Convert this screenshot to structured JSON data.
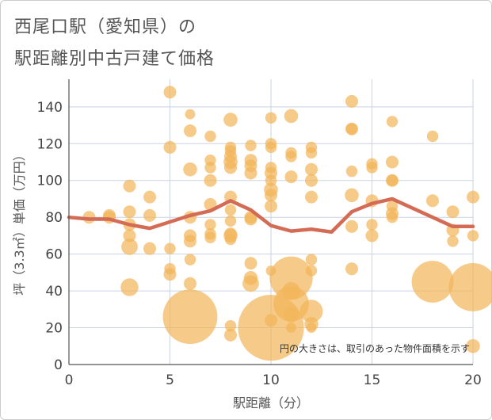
{
  "header": {
    "title_line1": "西尾口駅（愛知県）の",
    "title_line2": "駅距離別中古戸建て価格"
  },
  "chart_data": {
    "type": "scatter",
    "title": "西尾口駅（愛知県）の 駅距離別中古戸建て価格",
    "xlabel": "駅距離（分）",
    "ylabel": "坪（3.3㎡）単価（万円）",
    "xlim": [
      0,
      20
    ],
    "ylim": [
      0,
      155
    ],
    "xticks": [
      0,
      5,
      10,
      15,
      20
    ],
    "yticks": [
      0,
      20,
      40,
      60,
      80,
      100,
      120,
      140
    ],
    "grid": true,
    "note": "円の大きさは、取引のあった物件面積を示す",
    "colors": {
      "bubble": "#f2b55a",
      "line": "#d36b55",
      "grid": "#c9d3e3"
    },
    "bubbles": [
      {
        "x": 1,
        "y": 80,
        "s": 1
      },
      {
        "x": 2,
        "y": 80,
        "s": 1
      },
      {
        "x": 2,
        "y": 81,
        "s": 1
      },
      {
        "x": 3,
        "y": 97,
        "s": 1
      },
      {
        "x": 3,
        "y": 83,
        "s": 1
      },
      {
        "x": 3,
        "y": 76,
        "s": 1
      },
      {
        "x": 3,
        "y": 70,
        "s": 1
      },
      {
        "x": 3,
        "y": 64,
        "s": 1.3
      },
      {
        "x": 3,
        "y": 42,
        "s": 1.4
      },
      {
        "x": 4,
        "y": 91,
        "s": 1
      },
      {
        "x": 4,
        "y": 81,
        "s": 1
      },
      {
        "x": 4,
        "y": 63,
        "s": 1
      },
      {
        "x": 5,
        "y": 148,
        "s": 1
      },
      {
        "x": 5,
        "y": 118,
        "s": 1
      },
      {
        "x": 5,
        "y": 63,
        "s": 0.9
      },
      {
        "x": 5,
        "y": 52,
        "s": 0.9
      },
      {
        "x": 5,
        "y": 49,
        "s": 1
      },
      {
        "x": 6,
        "y": 136,
        "s": 0.8
      },
      {
        "x": 6,
        "y": 127,
        "s": 1
      },
      {
        "x": 6,
        "y": 106,
        "s": 1.1
      },
      {
        "x": 6,
        "y": 80,
        "s": 1
      },
      {
        "x": 6,
        "y": 70,
        "s": 1
      },
      {
        "x": 6,
        "y": 67,
        "s": 1
      },
      {
        "x": 6,
        "y": 57,
        "s": 0.9
      },
      {
        "x": 6,
        "y": 44,
        "s": 1
      },
      {
        "x": 6,
        "y": 26,
        "s": 4.3
      },
      {
        "x": 7,
        "y": 124,
        "s": 0.9
      },
      {
        "x": 7,
        "y": 111,
        "s": 0.9
      },
      {
        "x": 7,
        "y": 107,
        "s": 0.9
      },
      {
        "x": 7,
        "y": 100,
        "s": 1
      },
      {
        "x": 7,
        "y": 87,
        "s": 1
      },
      {
        "x": 7,
        "y": 76,
        "s": 0.9
      },
      {
        "x": 7,
        "y": 71,
        "s": 0.9
      },
      {
        "x": 7,
        "y": 69,
        "s": 0.9
      },
      {
        "x": 8,
        "y": 133,
        "s": 1.1
      },
      {
        "x": 8,
        "y": 118,
        "s": 0.9
      },
      {
        "x": 8,
        "y": 116,
        "s": 0.9
      },
      {
        "x": 8,
        "y": 113,
        "s": 1
      },
      {
        "x": 8,
        "y": 110,
        "s": 1.1
      },
      {
        "x": 8,
        "y": 107,
        "s": 1
      },
      {
        "x": 8,
        "y": 91,
        "s": 1
      },
      {
        "x": 8,
        "y": 84,
        "s": 0.9
      },
      {
        "x": 8,
        "y": 78,
        "s": 0.9
      },
      {
        "x": 8,
        "y": 71,
        "s": 1
      },
      {
        "x": 8,
        "y": 70,
        "s": 1.1
      },
      {
        "x": 8,
        "y": 68,
        "s": 0.9
      },
      {
        "x": 8,
        "y": 21,
        "s": 0.9
      },
      {
        "x": 8,
        "y": 16,
        "s": 1
      },
      {
        "x": 9,
        "y": 119,
        "s": 0.9
      },
      {
        "x": 9,
        "y": 111,
        "s": 1
      },
      {
        "x": 9,
        "y": 108,
        "s": 1
      },
      {
        "x": 9,
        "y": 104,
        "s": 1
      },
      {
        "x": 9,
        "y": 80,
        "s": 1
      },
      {
        "x": 9,
        "y": 79,
        "s": 1
      },
      {
        "x": 9,
        "y": 55,
        "s": 1
      },
      {
        "x": 9,
        "y": 47,
        "s": 1.1
      },
      {
        "x": 9,
        "y": 44,
        "s": 1.3
      },
      {
        "x": 10,
        "y": 134,
        "s": 0.9
      },
      {
        "x": 10,
        "y": 120,
        "s": 0.9
      },
      {
        "x": 10,
        "y": 118,
        "s": 0.9
      },
      {
        "x": 10,
        "y": 107,
        "s": 0.9
      },
      {
        "x": 10,
        "y": 104,
        "s": 1
      },
      {
        "x": 10,
        "y": 100,
        "s": 0.9
      },
      {
        "x": 10,
        "y": 95,
        "s": 1.1
      },
      {
        "x": 10,
        "y": 92,
        "s": 1
      },
      {
        "x": 10,
        "y": 86,
        "s": 1
      },
      {
        "x": 10,
        "y": 51,
        "s": 0.8
      },
      {
        "x": 10,
        "y": 24,
        "s": 1
      },
      {
        "x": 10,
        "y": 20,
        "s": 5.2
      },
      {
        "x": 11,
        "y": 135,
        "s": 1.1
      },
      {
        "x": 11,
        "y": 115,
        "s": 0.9
      },
      {
        "x": 11,
        "y": 113,
        "s": 0.9
      },
      {
        "x": 11,
        "y": 102,
        "s": 1
      },
      {
        "x": 11,
        "y": 47,
        "s": 3.4
      },
      {
        "x": 11,
        "y": 40,
        "s": 1.4
      },
      {
        "x": 11,
        "y": 33,
        "s": 2.8
      },
      {
        "x": 11,
        "y": 27,
        "s": 1.2
      },
      {
        "x": 11,
        "y": 20,
        "s": 0.8
      },
      {
        "x": 12,
        "y": 118,
        "s": 0.9
      },
      {
        "x": 12,
        "y": 115,
        "s": 0.9
      },
      {
        "x": 12,
        "y": 106,
        "s": 1
      },
      {
        "x": 12,
        "y": 100,
        "s": 1
      },
      {
        "x": 12,
        "y": 91,
        "s": 1
      },
      {
        "x": 12,
        "y": 57,
        "s": 0.9
      },
      {
        "x": 12,
        "y": 51,
        "s": 0.9
      },
      {
        "x": 12,
        "y": 29,
        "s": 1.8
      },
      {
        "x": 12,
        "y": 22,
        "s": 1.1
      },
      {
        "x": 12,
        "y": 20,
        "s": 0.8
      },
      {
        "x": 14,
        "y": 143,
        "s": 1
      },
      {
        "x": 14,
        "y": 128,
        "s": 1
      },
      {
        "x": 14,
        "y": 128,
        "s": 0.9
      },
      {
        "x": 14,
        "y": 105,
        "s": 0.9
      },
      {
        "x": 14,
        "y": 92,
        "s": 1.1
      },
      {
        "x": 14,
        "y": 75,
        "s": 1
      },
      {
        "x": 14,
        "y": 52,
        "s": 1
      },
      {
        "x": 15,
        "y": 109,
        "s": 0.9
      },
      {
        "x": 15,
        "y": 107,
        "s": 0.9
      },
      {
        "x": 15,
        "y": 89,
        "s": 1
      },
      {
        "x": 15,
        "y": 76,
        "s": 0.9
      },
      {
        "x": 15,
        "y": 70,
        "s": 1
      },
      {
        "x": 16,
        "y": 132,
        "s": 0.9
      },
      {
        "x": 16,
        "y": 110,
        "s": 1
      },
      {
        "x": 16,
        "y": 100,
        "s": 1
      },
      {
        "x": 16,
        "y": 100,
        "s": 0.9
      },
      {
        "x": 16,
        "y": 86,
        "s": 0.9
      },
      {
        "x": 16,
        "y": 82,
        "s": 1
      },
      {
        "x": 16,
        "y": 80,
        "s": 0.9
      },
      {
        "x": 18,
        "y": 124,
        "s": 0.9
      },
      {
        "x": 18,
        "y": 89,
        "s": 1
      },
      {
        "x": 18,
        "y": 45,
        "s": 3.3
      },
      {
        "x": 19,
        "y": 83,
        "s": 1
      },
      {
        "x": 19,
        "y": 73,
        "s": 1
      },
      {
        "x": 19,
        "y": 67,
        "s": 0.9
      },
      {
        "x": 20,
        "y": 91,
        "s": 1
      },
      {
        "x": 20,
        "y": 70,
        "s": 0.9
      },
      {
        "x": 20,
        "y": 42,
        "s": 3.8
      },
      {
        "x": 20,
        "y": 10,
        "s": 1.1
      }
    ],
    "trend_line": {
      "x": [
        0,
        1,
        2,
        3,
        4,
        5,
        6,
        7,
        8,
        9,
        10,
        11,
        12,
        13,
        14,
        15,
        16,
        17,
        18,
        19,
        20
      ],
      "y": [
        80,
        79,
        79,
        76,
        74,
        77.5,
        81,
        83.5,
        89,
        84,
        75.5,
        72.5,
        73.5,
        72,
        83,
        87.5,
        90,
        85,
        80,
        75,
        75
      ]
    }
  }
}
